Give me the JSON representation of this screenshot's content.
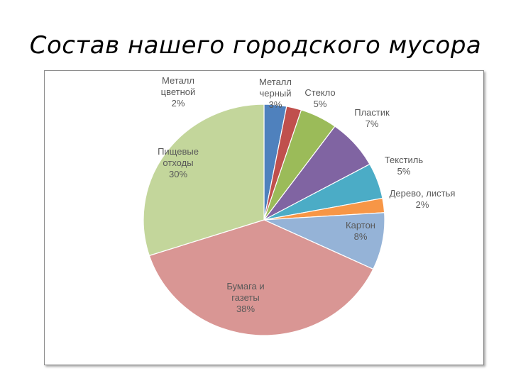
{
  "slide": {
    "title": "Состав нашего городского мусора"
  },
  "chart_data": {
    "type": "pie",
    "title": "",
    "start": "12 o'clock, clockwise",
    "legend": "none",
    "slices": [
      {
        "label": [
          "Металл",
          "черный"
        ],
        "value": 3,
        "value_label": "3%",
        "color": "#4f81bd"
      },
      {
        "label": [
          "Металл",
          "цветной"
        ],
        "value": 2,
        "value_label": "2%",
        "color": "#c0504d"
      },
      {
        "label": [
          "Стекло"
        ],
        "value": 5,
        "value_label": "5%",
        "color": "#9bbb59"
      },
      {
        "label": [
          "Пластик"
        ],
        "value": 7,
        "value_label": "7%",
        "color": "#8064a2"
      },
      {
        "label": [
          "Текстиль"
        ],
        "value": 5,
        "value_label": "5%",
        "color": "#4bacc6"
      },
      {
        "label": [
          "Дерево, листья"
        ],
        "value": 2,
        "value_label": "2%",
        "color": "#f79646"
      },
      {
        "label": [
          "Картон"
        ],
        "value": 8,
        "value_label": "8%",
        "color": "#95b3d7"
      },
      {
        "label": [
          "Бумага и",
          "газеты"
        ],
        "value": 38,
        "value_label": "38%",
        "color": "#d99694"
      },
      {
        "label": [
          "Пищевые",
          "отходы"
        ],
        "value": 30,
        "value_label": "30%",
        "color": "#c3d69b"
      }
    ]
  }
}
